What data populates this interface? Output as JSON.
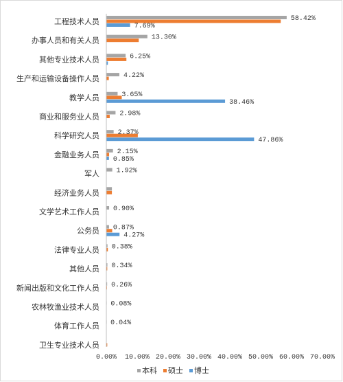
{
  "chart_data": {
    "type": "bar",
    "orientation": "horizontal",
    "title": "",
    "xlabel": "",
    "ylabel": "",
    "xlim": [
      0,
      70
    ],
    "x_ticks": [
      "0.00%",
      "10.00%",
      "20.00%",
      "30.00%",
      "40.00%",
      "50.00%",
      "60.00%",
      "70.00%"
    ],
    "grid": false,
    "legend_position": "bottom",
    "categories": [
      "工程技术人员",
      "办事人员和有关人员",
      "其他专业技术人员",
      "生产和运输设备操作人员",
      "教学人员",
      "商业和服务业人员",
      "科学研究人员",
      "金融业务人员",
      "军人",
      "经济业务人员",
      "文学艺术工作人员",
      "公务员",
      "法律专业人员",
      "其他人员",
      "新闻出版和文化工作人员",
      "农林牧渔业技术人员",
      "体育工作人员",
      "卫生专业技术人员"
    ],
    "series": [
      {
        "name": "本科",
        "color": "#a5a5a5",
        "values": [
          58.42,
          13.3,
          6.25,
          4.22,
          3.65,
          2.98,
          2.37,
          2.15,
          1.92,
          1.8,
          0.9,
          0.87,
          0.38,
          0.34,
          0.26,
          0.08,
          0.04,
          0.0
        ],
        "labels": [
          "58.42%",
          "13.30%",
          "6.25%",
          "4.22%",
          "3.65%",
          "2.98%",
          "2.37%",
          "2.15%",
          "1.92%",
          "",
          "0.90%",
          "0.87%",
          "0.38%",
          "0.34%",
          "0.26%",
          "0.08%",
          "0.04%",
          ""
        ]
      },
      {
        "name": "硕士",
        "color": "#ed7d31",
        "values": [
          56.5,
          10.5,
          6.5,
          0.8,
          5.0,
          1.1,
          10.2,
          0.9,
          0.0,
          1.8,
          0.0,
          1.9,
          0.5,
          0.3,
          0.2,
          0.0,
          0.0,
          0.3
        ],
        "labels": [
          "",
          "",
          "",
          "",
          "",
          "",
          "",
          "",
          "",
          "",
          "",
          "",
          "",
          "",
          "",
          "",
          "",
          ""
        ]
      },
      {
        "name": "博士",
        "color": "#5b9bd5",
        "values": [
          7.69,
          0.0,
          0.5,
          0.0,
          38.46,
          0.0,
          47.86,
          0.85,
          0.0,
          0.0,
          0.0,
          4.27,
          0.0,
          0.0,
          0.0,
          0.0,
          0.0,
          0.0
        ],
        "labels": [
          "7.69%",
          "",
          "",
          "",
          "38.46%",
          "",
          "47.86%",
          "0.85%",
          "",
          "",
          "",
          "4.27%",
          "",
          "",
          "",
          "",
          "",
          ""
        ]
      }
    ]
  }
}
